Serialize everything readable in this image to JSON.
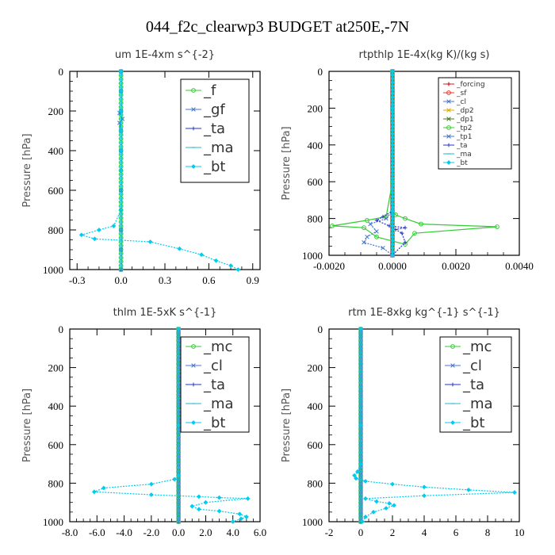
{
  "figure_title": "044_f2c_clearwp3  BUDGET at250E,-7N",
  "series_colors": {
    "_f": "#33cc33",
    "_gf": "#4477cc",
    "_ta": "#2233cc",
    "_ma": "#22bbcc",
    "_bt": "#00ccee",
    "_mc": "#33cc33",
    "_cl": "#4477cc",
    "_forcing": "#cc2222",
    "_sf": "#ee3333",
    "_dp2": "#ddaa00",
    "_dp1": "#447722",
    "_tp2": "#33cc33",
    "_tp1": "#4477cc"
  },
  "chart_data": [
    {
      "type": "line",
      "title": "um   1E-4xm s^{-2}",
      "ylabel": "Pressure [hPa]",
      "xlim": [
        -0.35,
        0.95
      ],
      "ylim": [
        1000,
        0
      ],
      "xticks": [
        -0.3,
        0.0,
        0.3,
        0.6,
        0.9
      ],
      "xtick_labels": [
        "-0.3",
        "0.0",
        "0.3",
        "0.6",
        "0.9"
      ],
      "yticks": [
        0,
        200,
        400,
        600,
        800,
        1000
      ],
      "ytick_labels": [
        "0",
        "200",
        "400",
        "600",
        "800",
        "1000"
      ],
      "legend": [
        "_f",
        "_gf",
        "_ta",
        "_ma",
        "_bt"
      ],
      "legend_font": 18,
      "series": [
        {
          "name": "_f",
          "x": [
            0,
            0,
            0,
            0,
            0,
            0,
            0,
            0,
            0,
            0,
            0
          ],
          "y": [
            0,
            100,
            200,
            300,
            400,
            500,
            600,
            700,
            800,
            900,
            1000
          ]
        },
        {
          "name": "_gf",
          "x": [
            0,
            0,
            0,
            -0.01,
            0.01,
            -0.01,
            0,
            0,
            0,
            0,
            0,
            0
          ],
          "y": [
            0,
            100,
            200,
            210,
            240,
            260,
            300,
            400,
            600,
            800,
            900,
            1000
          ]
        },
        {
          "name": "_ta",
          "x": [
            0,
            0,
            0,
            0,
            0,
            0,
            0,
            0,
            0,
            0,
            0
          ],
          "y": [
            0,
            100,
            200,
            300,
            400,
            500,
            600,
            700,
            800,
            900,
            1000
          ]
        },
        {
          "name": "_ma",
          "x": [
            0,
            0,
            0,
            0,
            0,
            0,
            0,
            0,
            0,
            0,
            0
          ],
          "y": [
            0,
            100,
            200,
            300,
            400,
            500,
            600,
            700,
            800,
            900,
            1000
          ]
        },
        {
          "name": "_bt",
          "x": [
            0,
            0,
            0,
            0,
            0,
            0,
            0,
            -0.05,
            -0.15,
            -0.27,
            -0.18,
            0.2,
            0.4,
            0.55,
            0.65,
            0.75,
            0.8
          ],
          "y": [
            0,
            100,
            200,
            300,
            400,
            500,
            700,
            780,
            800,
            825,
            845,
            860,
            895,
            925,
            955,
            980,
            1000
          ]
        }
      ]
    },
    {
      "type": "line",
      "title": "rtpthlp   1E-4x(kg K)/(kg s)",
      "ylabel": "Pressure [hPa]",
      "xlim": [
        -0.002,
        0.004
      ],
      "ylim": [
        1000,
        0
      ],
      "xticks": [
        -0.002,
        0.0,
        0.002,
        0.004
      ],
      "xtick_labels": [
        "-0.0020",
        "0.0000",
        "0.0020",
        "0.0040"
      ],
      "yticks": [
        0,
        200,
        400,
        600,
        800,
        1000
      ],
      "ytick_labels": [
        "0",
        "200",
        "400",
        "600",
        "800",
        "1000"
      ],
      "legend": [
        "_forcing",
        "_sf",
        "_cl",
        "_dp2",
        "_dp1",
        "_tp2",
        "_tp1",
        "_ta",
        "_ma",
        "_bt"
      ],
      "legend_font": 9,
      "series": [
        {
          "name": "_forcing",
          "x": [
            0,
            0,
            0,
            0,
            0,
            0,
            0,
            0,
            0,
            0,
            0
          ],
          "y": [
            0,
            100,
            200,
            300,
            400,
            500,
            600,
            700,
            800,
            900,
            1000
          ]
        },
        {
          "name": "_sf",
          "x": [
            0,
            0,
            0,
            0,
            0,
            0,
            0,
            0,
            0,
            0,
            0
          ],
          "y": [
            0,
            100,
            200,
            300,
            400,
            500,
            600,
            700,
            800,
            900,
            1000
          ]
        },
        {
          "name": "_cl",
          "x": [
            0,
            0,
            0,
            0,
            0,
            0,
            0,
            0,
            0,
            0,
            0
          ],
          "y": [
            0,
            100,
            200,
            300,
            400,
            500,
            600,
            700,
            800,
            900,
            1000
          ]
        },
        {
          "name": "_dp2",
          "x": [
            0,
            0,
            0,
            0,
            0,
            0,
            0,
            0,
            0,
            0,
            0
          ],
          "y": [
            0,
            100,
            200,
            300,
            400,
            500,
            600,
            700,
            800,
            900,
            1000
          ]
        },
        {
          "name": "_dp1",
          "x": [
            0,
            0,
            0,
            0,
            0,
            0,
            0,
            0,
            0,
            0,
            0
          ],
          "y": [
            0,
            100,
            200,
            300,
            400,
            500,
            600,
            700,
            800,
            900,
            1000
          ]
        },
        {
          "name": "_tp2",
          "x": [
            0,
            0,
            0,
            -0.0002,
            -0.0008,
            -0.0019,
            -0.0009,
            -0.0005,
            0.0004,
            0.0007,
            0.0033,
            0.0009,
            0.0004,
            0.0001,
            0
          ],
          "y": [
            0,
            200,
            600,
            790,
            810,
            840,
            850,
            900,
            940,
            880,
            845,
            830,
            800,
            780,
            760
          ]
        },
        {
          "name": "_tp1",
          "x": [
            0,
            0,
            0,
            -0.0002,
            -0.0007,
            -0.0005,
            -0.0008,
            -0.0009,
            -0.0003,
            0
          ],
          "y": [
            0,
            200,
            760,
            800,
            830,
            870,
            900,
            930,
            960,
            1000
          ]
        },
        {
          "name": "_ta",
          "x": [
            0,
            0,
            0,
            -0.0003,
            -0.0005,
            -0.0001,
            0.0004,
            0.0001,
            0.0003,
            0.0004,
            0
          ],
          "y": [
            0,
            200,
            760,
            790,
            810,
            840,
            850,
            860,
            880,
            930,
            1000
          ]
        },
        {
          "name": "_ma",
          "x": [
            0,
            0,
            0,
            0,
            0,
            0,
            0,
            0,
            0,
            0,
            0
          ],
          "y": [
            0,
            100,
            200,
            300,
            400,
            500,
            600,
            700,
            800,
            900,
            1000
          ]
        },
        {
          "name": "_bt",
          "x": [
            0,
            0,
            0,
            0,
            0,
            0,
            0,
            0,
            0,
            0,
            0
          ],
          "y": [
            0,
            100,
            200,
            300,
            400,
            500,
            600,
            700,
            800,
            900,
            1000
          ]
        }
      ]
    },
    {
      "type": "line",
      "title": "thlm   1E-5xK s^{-1}",
      "ylabel": "Pressure [hPa]",
      "xlim": [
        -8.0,
        6.0
      ],
      "ylim": [
        1000,
        0
      ],
      "xticks": [
        -8,
        -6,
        -4,
        -2,
        0,
        2,
        4,
        6
      ],
      "xtick_labels": [
        "-8.0",
        "-6.0",
        "-4.0",
        "-2.0",
        "0.0",
        "2.0",
        "4.0",
        "6.0"
      ],
      "yticks": [
        0,
        200,
        400,
        600,
        800,
        1000
      ],
      "ytick_labels": [
        "0",
        "200",
        "400",
        "600",
        "800",
        "1000"
      ],
      "legend": [
        "_mc",
        "_cl",
        "_ta",
        "_ma",
        "_bt"
      ],
      "legend_font": 18,
      "series": [
        {
          "name": "_mc",
          "x": [
            0,
            0,
            0,
            0,
            0,
            0,
            0,
            0,
            0,
            0,
            0
          ],
          "y": [
            0,
            100,
            200,
            300,
            400,
            500,
            600,
            700,
            800,
            900,
            1000
          ]
        },
        {
          "name": "_cl",
          "x": [
            0,
            0,
            0,
            0,
            0,
            0,
            0,
            0,
            0,
            0,
            0
          ],
          "y": [
            0,
            100,
            200,
            300,
            400,
            500,
            600,
            700,
            800,
            900,
            1000
          ]
        },
        {
          "name": "_ta",
          "x": [
            0,
            0,
            0,
            0,
            0,
            0,
            0,
            0,
            0,
            0,
            0
          ],
          "y": [
            0,
            100,
            200,
            300,
            400,
            500,
            600,
            700,
            800,
            900,
            1000
          ]
        },
        {
          "name": "_ma",
          "x": [
            0,
            0,
            0,
            0,
            0,
            0,
            0,
            0,
            0,
            0,
            0
          ],
          "y": [
            0,
            100,
            200,
            300,
            400,
            500,
            600,
            700,
            800,
            900,
            1000
          ]
        },
        {
          "name": "_bt",
          "x": [
            0,
            0,
            0,
            -0.3,
            -2.0,
            -5.5,
            -6.2,
            -2.0,
            1.5,
            3.0,
            5.1,
            2.0,
            1.0,
            1.5,
            3.0,
            4.5,
            5.0,
            4.6,
            4.0
          ],
          "y": [
            0,
            500,
            760,
            780,
            805,
            825,
            845,
            860,
            870,
            875,
            880,
            900,
            920,
            935,
            945,
            960,
            975,
            985,
            1000
          ]
        }
      ]
    },
    {
      "type": "line",
      "title": "rtm   1E-8xkg kg^{-1} s^{-1}",
      "ylabel": "Pressure [hPa]",
      "xlim": [
        -2,
        10
      ],
      "ylim": [
        1000,
        0
      ],
      "xticks": [
        -2,
        0,
        2,
        4,
        6,
        8,
        10
      ],
      "xtick_labels": [
        "-2",
        "0",
        "2",
        "4",
        "6",
        "8",
        "10"
      ],
      "yticks": [
        0,
        200,
        400,
        600,
        800,
        1000
      ],
      "ytick_labels": [
        "0",
        "200",
        "400",
        "600",
        "800",
        "1000"
      ],
      "legend": [
        "_mc",
        "_cl",
        "_ta",
        "_ma",
        "_bt"
      ],
      "legend_font": 18,
      "series": [
        {
          "name": "_mc",
          "x": [
            0,
            0,
            0,
            0,
            0,
            0,
            0,
            0,
            0,
            0,
            0
          ],
          "y": [
            0,
            100,
            200,
            300,
            400,
            500,
            600,
            700,
            800,
            900,
            1000
          ]
        },
        {
          "name": "_cl",
          "x": [
            0,
            0,
            0,
            0,
            0,
            0,
            0,
            0,
            0,
            0,
            0
          ],
          "y": [
            0,
            100,
            200,
            300,
            400,
            500,
            600,
            700,
            800,
            900,
            1000
          ]
        },
        {
          "name": "_ta",
          "x": [
            0,
            0,
            0,
            0,
            0,
            0,
            0,
            0,
            0,
            0,
            0
          ],
          "y": [
            0,
            100,
            200,
            300,
            400,
            500,
            600,
            700,
            800,
            900,
            1000
          ]
        },
        {
          "name": "_ma",
          "x": [
            0,
            0,
            0,
            0,
            0,
            0,
            0,
            0,
            0,
            0,
            0
          ],
          "y": [
            0,
            100,
            200,
            300,
            400,
            500,
            600,
            700,
            800,
            900,
            1000
          ]
        },
        {
          "name": "_bt",
          "x": [
            0,
            0,
            0,
            -0.2,
            -0.4,
            -0.3,
            0.3,
            2.0,
            4.0,
            6.8,
            9.7,
            4.0,
            0.3,
            1.0,
            1.8,
            2.1,
            1.6,
            0.8,
            0.3,
            0.1
          ],
          "y": [
            0,
            500,
            700,
            740,
            760,
            775,
            790,
            805,
            820,
            835,
            848,
            865,
            880,
            895,
            905,
            915,
            930,
            950,
            975,
            1000
          ]
        }
      ]
    }
  ]
}
